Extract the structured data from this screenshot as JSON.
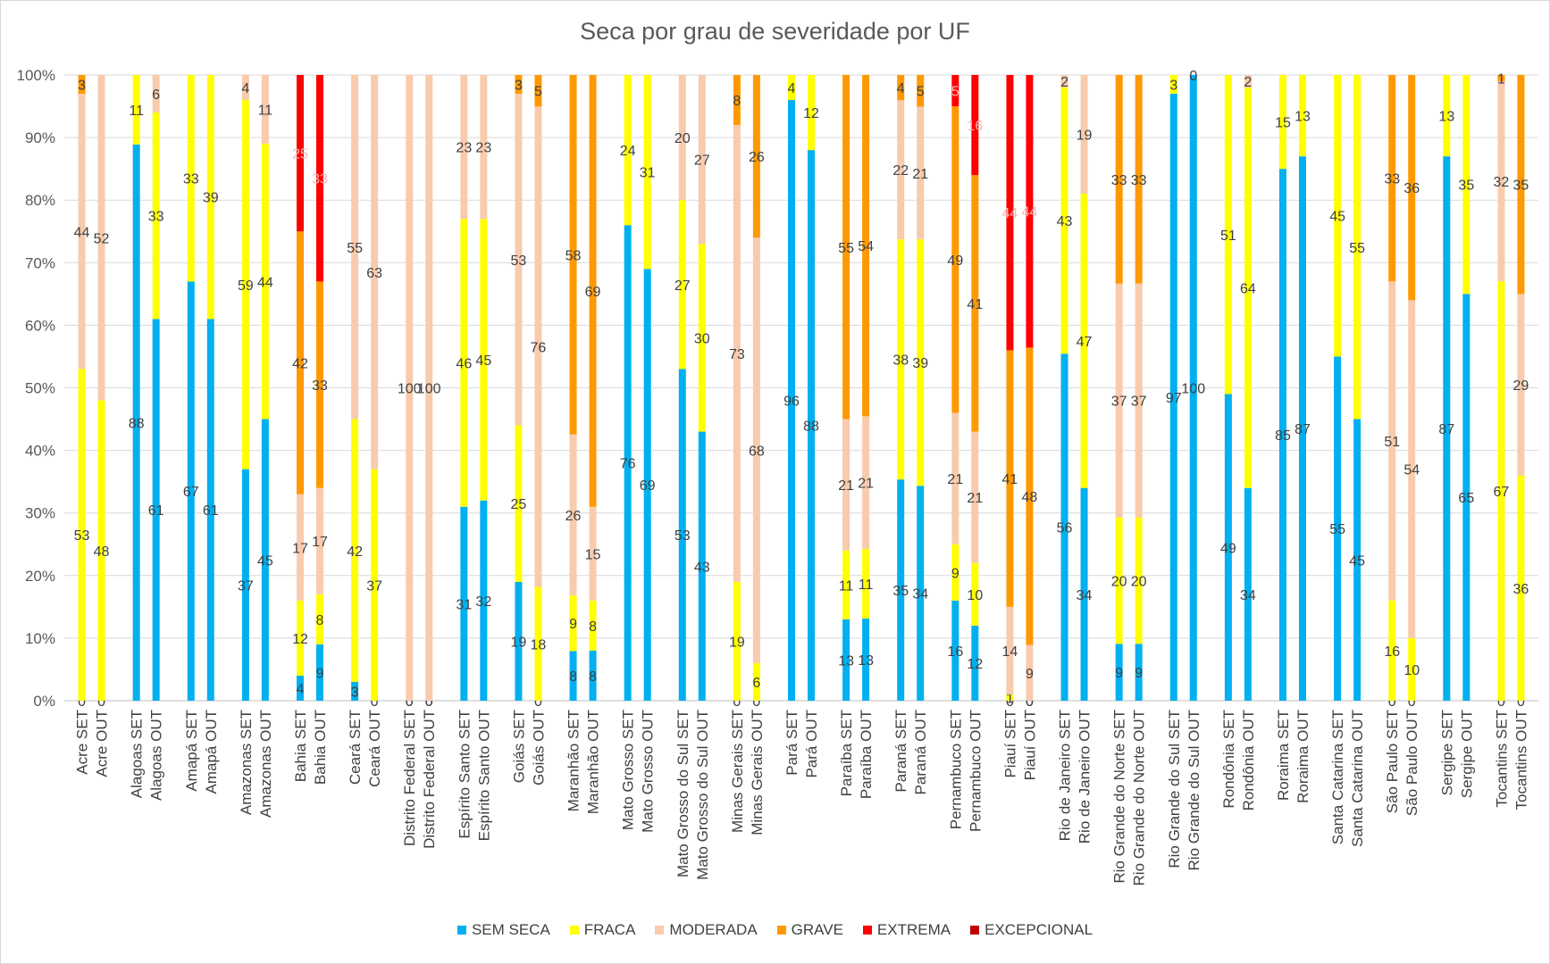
{
  "chart_data": {
    "type": "bar",
    "stacked": true,
    "percent": true,
    "title": "Seca por grau de severidade por UF",
    "y_ticks": [
      "0%",
      "10%",
      "20%",
      "30%",
      "40%",
      "50%",
      "60%",
      "70%",
      "80%",
      "90%",
      "100%"
    ],
    "ylim": [
      0,
      100
    ],
    "legend_position": "bottom",
    "series": [
      {
        "name": "SEM SECA",
        "color": "#00b0f0"
      },
      {
        "name": "FRACA",
        "color": "#ffff00"
      },
      {
        "name": "MODERADA",
        "color": "#f8cbad"
      },
      {
        "name": "GRAVE",
        "color": "#ff9900"
      },
      {
        "name": "EXTREMA",
        "color": "#ff0000"
      },
      {
        "name": "EXCEPCIONAL",
        "color": "#c00000"
      }
    ],
    "groups": [
      {
        "uf": "Acre",
        "bars": [
          {
            "label": "Acre SET",
            "values": [
              0,
              53,
              44,
              3,
              0,
              0
            ]
          },
          {
            "label": "Acre OUT",
            "values": [
              0,
              48,
              52,
              0,
              0,
              0
            ]
          }
        ]
      },
      {
        "uf": "Alagoas",
        "bars": [
          {
            "label": "Alagoas SET",
            "values": [
              88,
              11,
              0,
              0,
              0,
              0
            ]
          },
          {
            "label": "Alagoas OUT",
            "values": [
              61,
              33,
              6,
              0,
              0,
              0
            ]
          }
        ]
      },
      {
        "uf": "Amapá",
        "bars": [
          {
            "label": "Amapá SET",
            "values": [
              67,
              33,
              0,
              0,
              0,
              0
            ]
          },
          {
            "label": "Amapá OUT",
            "values": [
              61,
              39,
              0,
              0,
              0,
              0
            ]
          }
        ]
      },
      {
        "uf": "Amazonas",
        "bars": [
          {
            "label": "Amazonas SET",
            "values": [
              37,
              59,
              4,
              0,
              0,
              0
            ]
          },
          {
            "label": "Amazonas OUT",
            "values": [
              45,
              44,
              11,
              0,
              0,
              0
            ]
          }
        ]
      },
      {
        "uf": "Bahia",
        "bars": [
          {
            "label": "Bahia SET",
            "values": [
              4,
              12,
              17,
              42,
              25,
              0
            ]
          },
          {
            "label": "Bahia OUT",
            "values": [
              9,
              8,
              17,
              33,
              33,
              0
            ]
          }
        ]
      },
      {
        "uf": "Ceará",
        "bars": [
          {
            "label": "Ceará SET",
            "values": [
              3,
              42,
              55,
              0,
              0,
              0
            ]
          },
          {
            "label": "Ceará OUT",
            "values": [
              0,
              37,
              63,
              0,
              0,
              0
            ]
          }
        ]
      },
      {
        "uf": "Distrito Federal",
        "bars": [
          {
            "label": "Distrito Federal SET",
            "values": [
              0,
              0,
              100,
              0,
              0,
              0
            ]
          },
          {
            "label": "Distrito Federal OUT",
            "values": [
              0,
              0,
              100,
              0,
              0,
              0
            ]
          }
        ]
      },
      {
        "uf": "Espírito Santo",
        "bars": [
          {
            "label": "Espírito Santo SET",
            "values": [
              31,
              46,
              23,
              0,
              0,
              0
            ]
          },
          {
            "label": "Espírito Santo OUT",
            "values": [
              32,
              45,
              23,
              0,
              0,
              0
            ]
          }
        ]
      },
      {
        "uf": "Goiás",
        "bars": [
          {
            "label": "Goiás SET",
            "values": [
              19,
              25,
              53,
              3,
              0,
              0
            ]
          },
          {
            "label": "Goiás OUT",
            "values": [
              0,
              18,
              76,
              5,
              0,
              0
            ]
          }
        ]
      },
      {
        "uf": "Maranhão",
        "bars": [
          {
            "label": "Maranhão SET",
            "values": [
              8,
              9,
              26,
              58,
              0,
              0
            ]
          },
          {
            "label": "Maranhão OUT",
            "values": [
              8,
              8,
              15,
              69,
              0,
              0
            ]
          }
        ]
      },
      {
        "uf": "Mato Grosso",
        "bars": [
          {
            "label": "Mato Grosso SET",
            "values": [
              76,
              24,
              0,
              0,
              0,
              0
            ]
          },
          {
            "label": "Mato Grosso OUT",
            "values": [
              69,
              31,
              0,
              0,
              0,
              0
            ]
          }
        ]
      },
      {
        "uf": "Mato Grosso do Sul",
        "bars": [
          {
            "label": "Mato Grosso do Sul SET",
            "values": [
              53,
              27,
              20,
              0,
              0,
              0
            ]
          },
          {
            "label": "Mato Grosso do Sul OUT",
            "values": [
              43,
              30,
              27,
              0,
              0,
              0
            ]
          }
        ]
      },
      {
        "uf": "Minas Gerais",
        "bars": [
          {
            "label": "Minas Gerais SET",
            "values": [
              0,
              19,
              73,
              8,
              0,
              0
            ]
          },
          {
            "label": "Minas Gerais OUT",
            "values": [
              0,
              6,
              68,
              26,
              0,
              0
            ]
          }
        ]
      },
      {
        "uf": "Pará",
        "bars": [
          {
            "label": "Pará SET",
            "values": [
              96,
              4,
              0,
              0,
              0,
              0
            ]
          },
          {
            "label": "Pará OUT",
            "values": [
              88,
              12,
              0,
              0,
              0,
              0
            ]
          }
        ]
      },
      {
        "uf": "Paraíba",
        "bars": [
          {
            "label": "Paraíba SET",
            "values": [
              13,
              11,
              21,
              55,
              0,
              0
            ]
          },
          {
            "label": "Paraíba OUT",
            "values": [
              13,
              11,
              21,
              54,
              0,
              0
            ]
          }
        ]
      },
      {
        "uf": "Paraná",
        "bars": [
          {
            "label": "Paraná SET",
            "values": [
              35,
              38,
              22,
              4,
              0,
              0
            ]
          },
          {
            "label": "Paraná OUT",
            "values": [
              34,
              39,
              21,
              5,
              0,
              0
            ]
          }
        ]
      },
      {
        "uf": "Pernambuco",
        "bars": [
          {
            "label": "Pernambuco SET",
            "values": [
              16,
              9,
              21,
              49,
              5,
              0
            ]
          },
          {
            "label": "Pernambuco OUT",
            "values": [
              12,
              10,
              21,
              41,
              16,
              0
            ]
          }
        ]
      },
      {
        "uf": "Piauí",
        "bars": [
          {
            "label": "Piauí SET",
            "values": [
              0,
              1,
              14,
              41,
              44,
              0
            ]
          },
          {
            "label": "Piauí OUT",
            "values": [
              0,
              0,
              9,
              48,
              44,
              0
            ]
          }
        ]
      },
      {
        "uf": "Rio de Janeiro",
        "bars": [
          {
            "label": "Rio de Janeiro SET",
            "values": [
              56,
              43,
              2,
              0,
              0,
              0
            ]
          },
          {
            "label": "Rio de Janeiro OUT",
            "values": [
              34,
              47,
              19,
              0,
              0,
              0
            ]
          }
        ]
      },
      {
        "uf": "Rio Grande do Norte",
        "bars": [
          {
            "label": "Rio Grande do Norte SET",
            "values": [
              9,
              20,
              37,
              33,
              0,
              0
            ]
          },
          {
            "label": "Rio Grande do Norte OUT",
            "values": [
              9,
              20,
              37,
              33,
              0,
              0
            ]
          }
        ]
      },
      {
        "uf": "Rio Grande do Sul",
        "bars": [
          {
            "label": "Rio Grande do Sul SET",
            "values": [
              97,
              3,
              0,
              0,
              0,
              0
            ]
          },
          {
            "label": "Rio Grande do Sul OUT",
            "values": [
              100,
              0,
              0,
              0,
              0,
              0
            ]
          }
        ]
      },
      {
        "uf": "Rondônia",
        "bars": [
          {
            "label": "Rondônia SET",
            "values": [
              49,
              51,
              0,
              0,
              0,
              0
            ]
          },
          {
            "label": "Rondônia OUT",
            "values": [
              34,
              64,
              2,
              0,
              0,
              0
            ]
          }
        ]
      },
      {
        "uf": "Roraima",
        "bars": [
          {
            "label": "Roraima SET",
            "values": [
              85,
              15,
              0,
              0,
              0,
              0
            ]
          },
          {
            "label": "Roraima OUT",
            "values": [
              87,
              13,
              0,
              0,
              0,
              0
            ]
          }
        ]
      },
      {
        "uf": "Santa Catarina",
        "bars": [
          {
            "label": "Santa Catarina SET",
            "values": [
              55,
              45,
              0,
              0,
              0,
              0
            ]
          },
          {
            "label": "Santa Catarina OUT",
            "values": [
              45,
              55,
              0,
              0,
              0,
              0
            ]
          }
        ]
      },
      {
        "uf": "São Paulo",
        "bars": [
          {
            "label": "São Paulo SET",
            "values": [
              0,
              16,
              51,
              33,
              0,
              0
            ]
          },
          {
            "label": "São Paulo OUT",
            "values": [
              0,
              10,
              54,
              36,
              0,
              0
            ]
          }
        ]
      },
      {
        "uf": "Sergipe",
        "bars": [
          {
            "label": "Sergipe SET",
            "values": [
              87,
              13,
              0,
              0,
              0,
              0
            ]
          },
          {
            "label": "Sergipe OUT",
            "values": [
              65,
              35,
              0,
              0,
              0,
              0
            ]
          }
        ]
      },
      {
        "uf": "Tocantins",
        "bars": [
          {
            "label": "Tocantins SET",
            "values": [
              0,
              67,
              32,
              1,
              0,
              0
            ]
          },
          {
            "label": "Tocantins OUT",
            "values": [
              0,
              36,
              29,
              35,
              0,
              0
            ]
          }
        ]
      }
    ]
  }
}
